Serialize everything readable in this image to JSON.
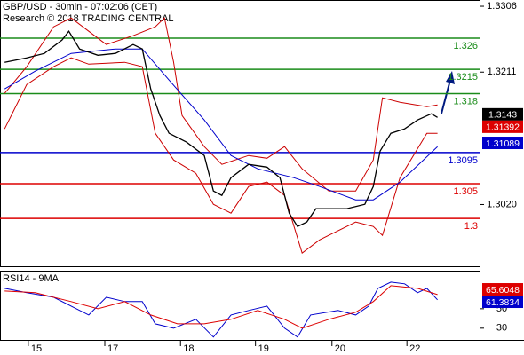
{
  "chart_data": [
    {
      "type": "line",
      "title": "GBP/USD - 30min - 07:02:06 (CET)",
      "subtitle": "Research © 2018 TRADING CENTRAL",
      "x": null,
      "xlim": [
        -0.37,
        5.9
      ],
      "xticks": [
        {
          "value": 0,
          "label": "15"
        },
        {
          "value": 1,
          "label": "17"
        },
        {
          "value": 1.99,
          "label": "18"
        },
        {
          "value": 2.97,
          "label": "19"
        },
        {
          "value": 3.97,
          "label": "20"
        },
        {
          "value": 4.95,
          "label": "22"
        }
      ],
      "ylim": [
        1.2931,
        1.3315
      ],
      "yticks": [
        1.3306,
        1.3211,
        {
          "value": 1.302,
          "label": "1.3020"
        }
      ],
      "series": [
        {
          "color": "#cc0000",
          "x": [
            -0.31,
            -0.02,
            0.33,
            0.56,
            0.79,
            1.02,
            1.37,
            1.66,
            1.78,
            1.9,
            2.01,
            2.3,
            2.53,
            2.88,
            3.12,
            3.35,
            3.58,
            3.93,
            4.28,
            4.51,
            4.63,
            4.86,
            5.21,
            5.35
          ],
          "values": [
            1.31803,
            1.32187,
            1.32763,
            1.32891,
            1.32699,
            1.32507,
            1.32635,
            1.32763,
            1.32891,
            1.32251,
            1.31483,
            1.31035,
            1.30779,
            1.30907,
            1.30868,
            1.31035,
            1.30715,
            1.30395,
            1.30395,
            1.30843,
            1.31739,
            1.31675,
            1.31611,
            1.31636
          ]
        },
        {
          "color": "#cc0000",
          "x": [
            -0.31,
            -0.02,
            0.33,
            0.56,
            0.79,
            1.26,
            1.49,
            1.66,
            1.9,
            2.19,
            2.42,
            2.65,
            2.88,
            3.12,
            3.35,
            3.58,
            3.81,
            4.28,
            4.51,
            4.63,
            4.86,
            5.21,
            5.35
          ],
          "values": [
            1.31291,
            1.31931,
            1.32187,
            1.32315,
            1.32225,
            1.32251,
            1.32187,
            1.31227,
            1.30843,
            1.30651,
            1.30203,
            1.30075,
            1.30459,
            1.30523,
            1.30331,
            1.29499,
            1.29691,
            1.29947,
            1.29883,
            1.29755,
            1.30587,
            1.31227,
            1.31227
          ]
        },
        {
          "color": "#0000cc",
          "x": [
            -0.31,
            0.09,
            0.56,
            1.14,
            1.49,
            1.84,
            2.3,
            2.65,
            3.0,
            3.47,
            3.81,
            4.28,
            4.51,
            4.86,
            5.35
          ],
          "values": [
            1.31867,
            1.32123,
            1.32379,
            1.32443,
            1.32443,
            1.31995,
            1.31419,
            1.30907,
            1.30715,
            1.30587,
            1.30459,
            1.30267,
            1.30267,
            1.30523,
            1.31035
          ]
        },
        {
          "color": "#000000",
          "x": [
            -0.31,
            -0.02,
            0.21,
            0.44,
            0.53,
            0.67,
            0.91,
            1.14,
            1.37,
            1.49,
            1.6,
            1.72,
            1.84,
            2.07,
            2.3,
            2.42,
            2.53,
            2.65,
            2.88,
            3.12,
            3.29,
            3.41,
            3.52,
            3.64,
            3.76,
            3.93,
            4.16,
            4.4,
            4.51,
            4.6,
            4.74,
            4.92,
            5.09,
            5.27,
            5.35
          ],
          "values": [
            1.32251,
            1.32315,
            1.32379,
            1.32571,
            1.32699,
            1.32443,
            1.32353,
            1.32379,
            1.32507,
            1.32443,
            1.31867,
            1.31483,
            1.31227,
            1.31099,
            1.30907,
            1.30395,
            1.30331,
            1.30587,
            1.30779,
            1.3074,
            1.30587,
            1.30075,
            1.29883,
            1.29947,
            1.30139,
            1.30139,
            1.30139,
            1.30203,
            1.30459,
            1.30971,
            1.31227,
            1.31291,
            1.31419,
            1.31509,
            1.31457
          ]
        }
      ],
      "levels": [
        {
          "value": 1.326,
          "color": "#1a8c1a"
        },
        {
          "value": 1.3215,
          "color": "#1a8c1a"
        },
        {
          "value": 1.318,
          "color": "#1a8c1a"
        },
        {
          "value": 1.3095,
          "color": "#0000cc"
        },
        {
          "value": 1.305,
          "color": "#dd0000"
        },
        {
          "value": 1.3,
          "color": "#dd0000"
        }
      ],
      "price_labels": [
        {
          "value": 1.3143,
          "color": "#000000"
        },
        {
          "value": 1.31392,
          "color": "#dd0000"
        },
        {
          "value": 1.31089,
          "color": "#0000cc"
        }
      ]
    },
    {
      "type": "line",
      "title": "RSI14 - 9MA",
      "x": [
        -0.31,
        -0.02,
        0.33,
        0.56,
        0.79,
        1.02,
        1.26,
        1.49,
        1.66,
        1.9,
        2.19,
        2.42,
        2.65,
        2.88,
        3.12,
        3.35,
        3.52,
        3.69,
        4.05,
        4.28,
        4.45,
        4.57,
        4.74,
        4.92,
        5.09,
        5.21,
        5.35
      ],
      "xlim": [
        -0.37,
        5.9
      ],
      "ylim": [
        18,
        89
      ],
      "yticks": [
        50,
        30
      ],
      "series": [
        {
          "color": "#0000cc",
          "values": [
            70.9,
            66.4,
            61.8,
            52.7,
            43.6,
            61.8,
            57.3,
            57.3,
            34.5,
            30,
            39.1,
            20.9,
            43.6,
            48.2,
            52.7,
            30,
            20.9,
            43.6,
            48.2,
            43.6,
            52.7,
            70.9,
            77.3,
            75.5,
            66.4,
            70.9,
            59.1
          ]
        },
        {
          "color": "#dd0000",
          "x": [
            -0.31,
            0.09,
            0.56,
            0.91,
            1.26,
            1.6,
            1.95,
            2.3,
            2.65,
            3.0,
            3.35,
            3.58,
            3.93,
            4.28,
            4.51,
            4.74,
            5.09,
            5.35
          ],
          "values": [
            68.2,
            66.4,
            57.3,
            50,
            57.3,
            43.6,
            34.5,
            34.5,
            39.1,
            48.2,
            39.1,
            30,
            39.1,
            46.4,
            57.3,
            73.6,
            70.9,
            64.5
          ]
        }
      ],
      "price_labels": [
        {
          "value": 65.6048,
          "color": "#dd0000"
        },
        {
          "value": 61.3834,
          "color": "#0000cc"
        }
      ]
    }
  ]
}
